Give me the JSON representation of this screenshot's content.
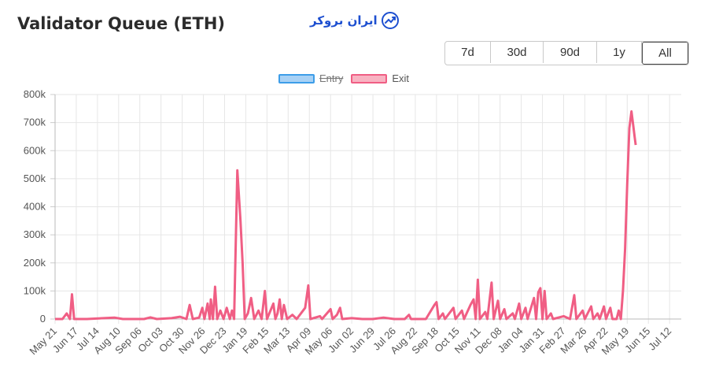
{
  "page": {
    "title": "Validator Queue (ETH)"
  },
  "brand": {
    "text": "ایران بروکر",
    "icon": "chart-trend-icon",
    "color": "#1d4fd0"
  },
  "range_buttons": [
    {
      "label": "7d",
      "active": false
    },
    {
      "label": "30d",
      "active": false
    },
    {
      "label": "90d",
      "active": false
    },
    {
      "label": "1y",
      "active": false
    },
    {
      "label": "All",
      "active": true
    }
  ],
  "legend": [
    {
      "label": "Entry",
      "hidden": true,
      "fill": "#a8d1f5",
      "stroke": "#3d9de8"
    },
    {
      "label": "Exit",
      "hidden": false,
      "fill": "#f8b3c2",
      "stroke": "#f05e84"
    }
  ],
  "chart_data": {
    "type": "line",
    "title": "",
    "xlabel": "",
    "ylabel": "",
    "ylim": [
      0,
      800000
    ],
    "y_ticks": [
      "0",
      "100k",
      "200k",
      "300k",
      "400k",
      "500k",
      "600k",
      "700k",
      "800k"
    ],
    "x_ticks": [
      "May 21",
      "Jun 17",
      "Jul 14",
      "Aug 10",
      "Sep 06",
      "Oct 03",
      "Oct 30",
      "Nov 26",
      "Dec 23",
      "Jan 19",
      "Feb 15",
      "Mar 13",
      "Apr 09",
      "May 06",
      "Jun 02",
      "Jun 29",
      "Jul 26",
      "Aug 22",
      "Sep 18",
      "Oct 15",
      "Nov 11",
      "Dec 08",
      "Jan 04",
      "Jan 31",
      "Feb 27",
      "Mar 26",
      "Apr 22",
      "May 19",
      "Jun 15",
      "Jul 12"
    ],
    "grid": true,
    "legend_position": "top-center",
    "series": [
      {
        "name": "Exit",
        "color": "#f05e84",
        "points": [
          [
            0,
            0
          ],
          [
            0.35,
            0
          ],
          [
            0.55,
            20000
          ],
          [
            0.7,
            0
          ],
          [
            0.8,
            88000
          ],
          [
            0.9,
            0
          ],
          [
            1.5,
            0
          ],
          [
            2.8,
            5000
          ],
          [
            3.2,
            0
          ],
          [
            4.2,
            0
          ],
          [
            4.5,
            6000
          ],
          [
            4.8,
            0
          ],
          [
            5.5,
            3000
          ],
          [
            5.9,
            8000
          ],
          [
            6.2,
            0
          ],
          [
            6.35,
            50000
          ],
          [
            6.5,
            0
          ],
          [
            6.8,
            5000
          ],
          [
            6.95,
            40000
          ],
          [
            7.05,
            0
          ],
          [
            7.2,
            55000
          ],
          [
            7.3,
            0
          ],
          [
            7.35,
            70000
          ],
          [
            7.45,
            0
          ],
          [
            7.55,
            115000
          ],
          [
            7.65,
            0
          ],
          [
            7.8,
            30000
          ],
          [
            7.95,
            0
          ],
          [
            8.1,
            40000
          ],
          [
            8.25,
            0
          ],
          [
            8.35,
            30000
          ],
          [
            8.45,
            0
          ],
          [
            8.6,
            530000
          ],
          [
            8.75,
            350000
          ],
          [
            8.85,
            200000
          ],
          [
            8.95,
            0
          ],
          [
            9.1,
            20000
          ],
          [
            9.25,
            75000
          ],
          [
            9.4,
            0
          ],
          [
            9.6,
            30000
          ],
          [
            9.75,
            0
          ],
          [
            9.9,
            100000
          ],
          [
            10.0,
            0
          ],
          [
            10.3,
            55000
          ],
          [
            10.4,
            0
          ],
          [
            10.5,
            20000
          ],
          [
            10.6,
            70000
          ],
          [
            10.7,
            0
          ],
          [
            10.8,
            50000
          ],
          [
            10.95,
            0
          ],
          [
            11.2,
            15000
          ],
          [
            11.4,
            0
          ],
          [
            11.8,
            40000
          ],
          [
            11.95,
            120000
          ],
          [
            12.05,
            0
          ],
          [
            12.5,
            10000
          ],
          [
            12.6,
            0
          ],
          [
            13.0,
            35000
          ],
          [
            13.1,
            0
          ],
          [
            13.3,
            15000
          ],
          [
            13.45,
            40000
          ],
          [
            13.55,
            0
          ],
          [
            14.0,
            3000
          ],
          [
            14.5,
            0
          ],
          [
            15.0,
            0
          ],
          [
            15.5,
            5000
          ],
          [
            16.0,
            0
          ],
          [
            16.5,
            0
          ],
          [
            16.7,
            15000
          ],
          [
            16.8,
            0
          ],
          [
            17.5,
            0
          ],
          [
            17.9,
            50000
          ],
          [
            18.0,
            60000
          ],
          [
            18.1,
            0
          ],
          [
            18.3,
            20000
          ],
          [
            18.4,
            0
          ],
          [
            18.8,
            40000
          ],
          [
            18.9,
            0
          ],
          [
            19.2,
            30000
          ],
          [
            19.3,
            0
          ],
          [
            19.6,
            50000
          ],
          [
            19.75,
            70000
          ],
          [
            19.85,
            0
          ],
          [
            19.95,
            140000
          ],
          [
            20.05,
            0
          ],
          [
            20.3,
            25000
          ],
          [
            20.4,
            0
          ],
          [
            20.6,
            130000
          ],
          [
            20.7,
            0
          ],
          [
            20.9,
            65000
          ],
          [
            21.0,
            0
          ],
          [
            21.2,
            35000
          ],
          [
            21.3,
            0
          ],
          [
            21.6,
            20000
          ],
          [
            21.7,
            0
          ],
          [
            21.9,
            55000
          ],
          [
            22.0,
            0
          ],
          [
            22.2,
            40000
          ],
          [
            22.3,
            0
          ],
          [
            22.6,
            75000
          ],
          [
            22.7,
            0
          ],
          [
            22.8,
            95000
          ],
          [
            22.9,
            110000
          ],
          [
            23.0,
            0
          ],
          [
            23.1,
            100000
          ],
          [
            23.2,
            0
          ],
          [
            23.4,
            20000
          ],
          [
            23.5,
            0
          ],
          [
            24.0,
            10000
          ],
          [
            24.3,
            0
          ],
          [
            24.5,
            85000
          ],
          [
            24.6,
            0
          ],
          [
            24.9,
            30000
          ],
          [
            25.0,
            0
          ],
          [
            25.3,
            45000
          ],
          [
            25.4,
            0
          ],
          [
            25.6,
            20000
          ],
          [
            25.7,
            0
          ],
          [
            25.9,
            45000
          ],
          [
            26.0,
            0
          ],
          [
            26.2,
            40000
          ],
          [
            26.3,
            0
          ],
          [
            26.5,
            0
          ],
          [
            26.6,
            30000
          ],
          [
            26.7,
            0
          ],
          [
            26.8,
            100000
          ],
          [
            26.9,
            250000
          ],
          [
            27.0,
            480000
          ],
          [
            27.1,
            680000
          ],
          [
            27.2,
            740000
          ],
          [
            27.3,
            680000
          ],
          [
            27.35,
            650000
          ],
          [
            27.4,
            620000
          ]
        ]
      }
    ]
  }
}
